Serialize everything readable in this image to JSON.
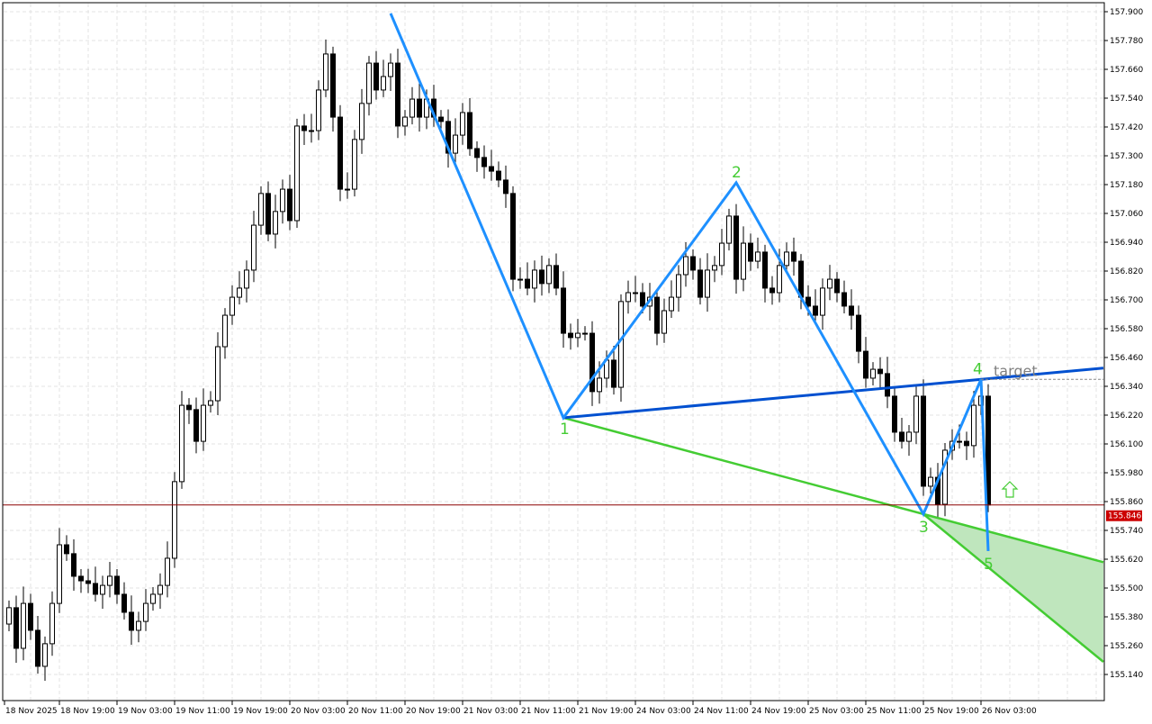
{
  "chart_data": {
    "type": "candlestick",
    "timeframe_hours": 1,
    "ylim": [
      155.08,
      157.92
    ],
    "grid": true,
    "yticks": [
      "157.900",
      "157.780",
      "157.660",
      "157.540",
      "157.420",
      "157.300",
      "157.180",
      "157.060",
      "156.940",
      "156.820",
      "156.700",
      "156.580",
      "156.460",
      "156.340",
      "156.220",
      "156.100",
      "155.980",
      "155.860",
      "155.740",
      "155.620",
      "155.500",
      "155.380",
      "155.260",
      "155.140"
    ],
    "xticks": [
      "18 Nov 2025",
      "18 Nov 19:00",
      "19 Nov 03:00",
      "19 Nov 11:00",
      "19 Nov 19:00",
      "20 Nov 03:00",
      "20 Nov 11:00",
      "20 Nov 19:00",
      "21 Nov 03:00",
      "21 Nov 11:00",
      "21 Nov 19:00",
      "24 Nov 03:00",
      "24 Nov 11:00",
      "24 Nov 19:00",
      "25 Nov 03:00",
      "25 Nov 11:00",
      "25 Nov 19:00",
      "26 Nov 03:00"
    ],
    "first_open": 155.35,
    "close": [
      155.418,
      155.249,
      155.436,
      155.324,
      155.174,
      155.268,
      155.436,
      155.68,
      155.643,
      155.549,
      155.53,
      155.519,
      155.474,
      155.511,
      155.549,
      155.474,
      155.399,
      155.324,
      155.361,
      155.436,
      155.474,
      155.511,
      155.624,
      155.943,
      156.261,
      156.243,
      156.111,
      156.261,
      156.28,
      156.505,
      156.636,
      156.711,
      156.749,
      156.824,
      157.011,
      157.143,
      156.974,
      157.068,
      157.161,
      157.03,
      157.424,
      157.405,
      157.405,
      157.574,
      157.724,
      157.461,
      157.161,
      157.161,
      157.368,
      157.518,
      157.686,
      157.574,
      157.63,
      157.686,
      157.424,
      157.461,
      157.536,
      157.461,
      157.536,
      157.461,
      157.443,
      157.311,
      157.386,
      157.48,
      157.33,
      157.293,
      157.255,
      157.236,
      157.199,
      157.143,
      156.786,
      156.786,
      156.749,
      156.824,
      156.768,
      156.843,
      156.749,
      156.561,
      156.543,
      156.561,
      156.561,
      156.318,
      156.374,
      156.449,
      156.336,
      156.693,
      156.73,
      156.73,
      156.674,
      156.711,
      156.561,
      156.655,
      156.711,
      156.805,
      156.88,
      156.824,
      156.711,
      156.824,
      156.843,
      156.936,
      157.049,
      156.786,
      156.936,
      156.861,
      156.899,
      156.749,
      156.73,
      156.843,
      156.899,
      156.861,
      156.711,
      156.674,
      156.636,
      156.749,
      156.786,
      156.73,
      156.674,
      156.636,
      156.486,
      156.374,
      156.411,
      156.393,
      156.299,
      156.149,
      156.111,
      156.149,
      156.299,
      155.924,
      155.961,
      155.849,
      156.074,
      156.111,
      156.111,
      156.093,
      156.261,
      156.299,
      155.846
    ],
    "current_price": "155.846",
    "pattern": {
      "points": [
        {
          "label": "",
          "time": "20 Nov 17:00",
          "price": 157.893
        },
        {
          "label": "1",
          "time": "21 Nov 17:00",
          "price": 156.209
        },
        {
          "label": "2",
          "time": "24 Nov 17:00",
          "price": 157.188
        },
        {
          "label": "3",
          "time": "25 Nov 19:00",
          "price": 155.808
        },
        {
          "label": "4",
          "time": "26 Nov 03:00",
          "price": 156.369
        },
        {
          "label": "5",
          "time": "26 Nov 04:00",
          "price": 155.654
        }
      ],
      "target_label": "target",
      "target_price": 156.369,
      "signal": "buy-arrow"
    },
    "colors": {
      "zigzag": "#1e90ff",
      "upper_line": "#0050d0",
      "lower_lines": "#44cc33",
      "fill": "#bfe6bd",
      "labels": "#44cc33",
      "price_tag": "#cc0000",
      "target_text": "#808080"
    }
  }
}
